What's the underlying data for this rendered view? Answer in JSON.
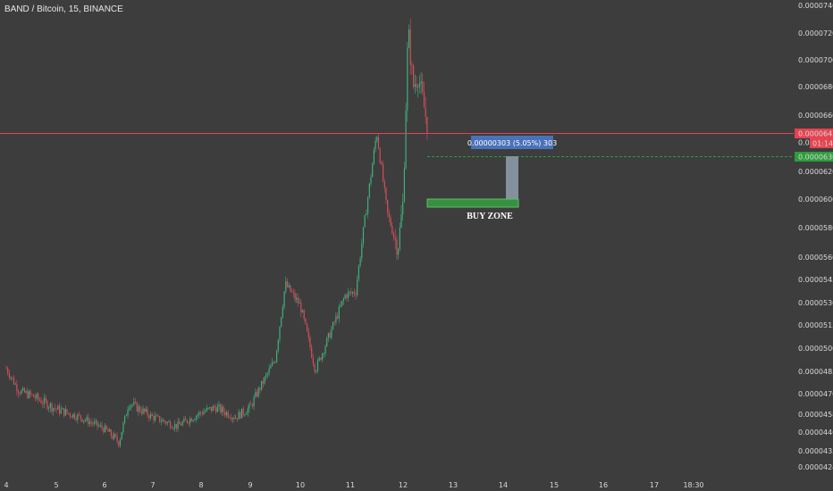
{
  "header": {
    "symbol_line": "BAND / Bitcoin, 15, BINANCE"
  },
  "colors": {
    "background": "#3d3d3d",
    "bull": "#3eb07d",
    "bear": "#d44f5c",
    "last_price_line": "#e54350",
    "target_line": "#2e9c3a",
    "buy_zone": "#37903f",
    "measure_box": "#4a72b8",
    "measure_bar": "#8a9aa7"
  },
  "chart_data": {
    "type": "candlestick",
    "title": "",
    "x_ticks": [
      "4",
      "5",
      "6",
      "7",
      "8",
      "9",
      "10",
      "11",
      "12",
      "13",
      "14",
      "15",
      "16",
      "17",
      "18:30"
    ],
    "y_ticks": [
      "0.00007400",
      "0.00007200",
      "0.00007000",
      "0.00006800",
      "0.00006600",
      "0.00006200",
      "0.00006000",
      "0.00005800",
      "0.00005600",
      "0.00005450",
      "0.00005300",
      "0.00005150",
      "0.00005000",
      "0.00004850",
      "0.00004700",
      "0.00004580",
      "0.00004460",
      "0.00004350",
      "0.00004245"
    ],
    "price_path": [
      [
        "4",
        4.87e-05
      ],
      [
        "4.25",
        4.72e-05
      ],
      [
        "4.5",
        4.69e-05
      ],
      [
        "5",
        4.61e-05
      ],
      [
        "5.5",
        4.56e-05
      ],
      [
        "6",
        4.48e-05
      ],
      [
        "6.3",
        4.4e-05
      ],
      [
        "6.5",
        4.65e-05
      ],
      [
        "7",
        4.56e-05
      ],
      [
        "7.5",
        4.5e-05
      ],
      [
        "8",
        4.59e-05
      ],
      [
        "8.3",
        4.62e-05
      ],
      [
        "8.7",
        4.56e-05
      ],
      [
        "9",
        4.62e-05
      ],
      [
        "9.5",
        4.93e-05
      ],
      [
        "9.7",
        5.42e-05
      ],
      [
        "10",
        5.28e-05
      ],
      [
        "10.3",
        4.86e-05
      ],
      [
        "10.6",
        5.1e-05
      ],
      [
        "10.9",
        5.35e-05
      ],
      [
        "11.1",
        5.37e-05
      ],
      [
        "11.5",
        6.48e-05
      ],
      [
        "11.7",
        5.9e-05
      ],
      [
        "11.9",
        5.66e-05
      ],
      [
        "12",
        5.98e-05
      ],
      [
        "12.1",
        7.23e-05
      ],
      [
        "12.2",
        6.8e-05
      ],
      [
        "12.3",
        6.88e-05
      ],
      [
        "12.5",
        6.5e-05
      ]
    ],
    "last_price": {
      "value": 6.459e-05,
      "label": "0.00006459",
      "countdown": "01:14"
    },
    "target_price": {
      "value": 6.3e-05,
      "label": "0.00006300"
    },
    "hidden_label": "0.0000",
    "annotations": {
      "measure": "0.00000303 (5.05%) 303",
      "buy_zone": "BUY ZONE"
    },
    "legend": "none",
    "grid": false
  }
}
